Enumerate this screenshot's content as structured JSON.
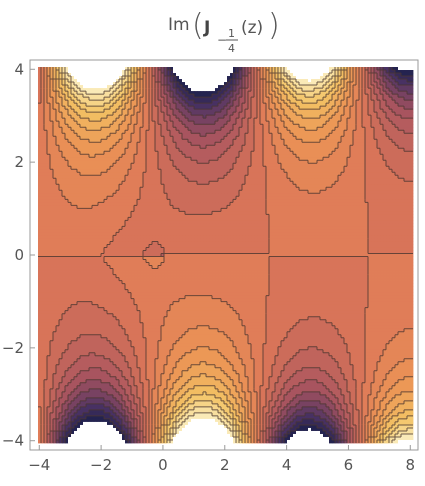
{
  "chart_data": {
    "type": "contour",
    "title": {
      "func": "Im",
      "symbol": "J",
      "sign": "−",
      "numerator": 1,
      "denominator": 4,
      "arg": "(z)"
    },
    "xlim": [
      -4.3,
      8.25
    ],
    "ylim": [
      -4.2,
      4.2
    ],
    "xticks": [
      {
        "value": -4,
        "label": "−4"
      },
      {
        "value": -2,
        "label": "−2"
      },
      0,
      2,
      4,
      6,
      8
    ],
    "yticks": [
      {
        "value": -4,
        "label": "−4"
      },
      {
        "value": -2,
        "label": "−2"
      },
      0,
      2,
      4
    ]
  }
}
